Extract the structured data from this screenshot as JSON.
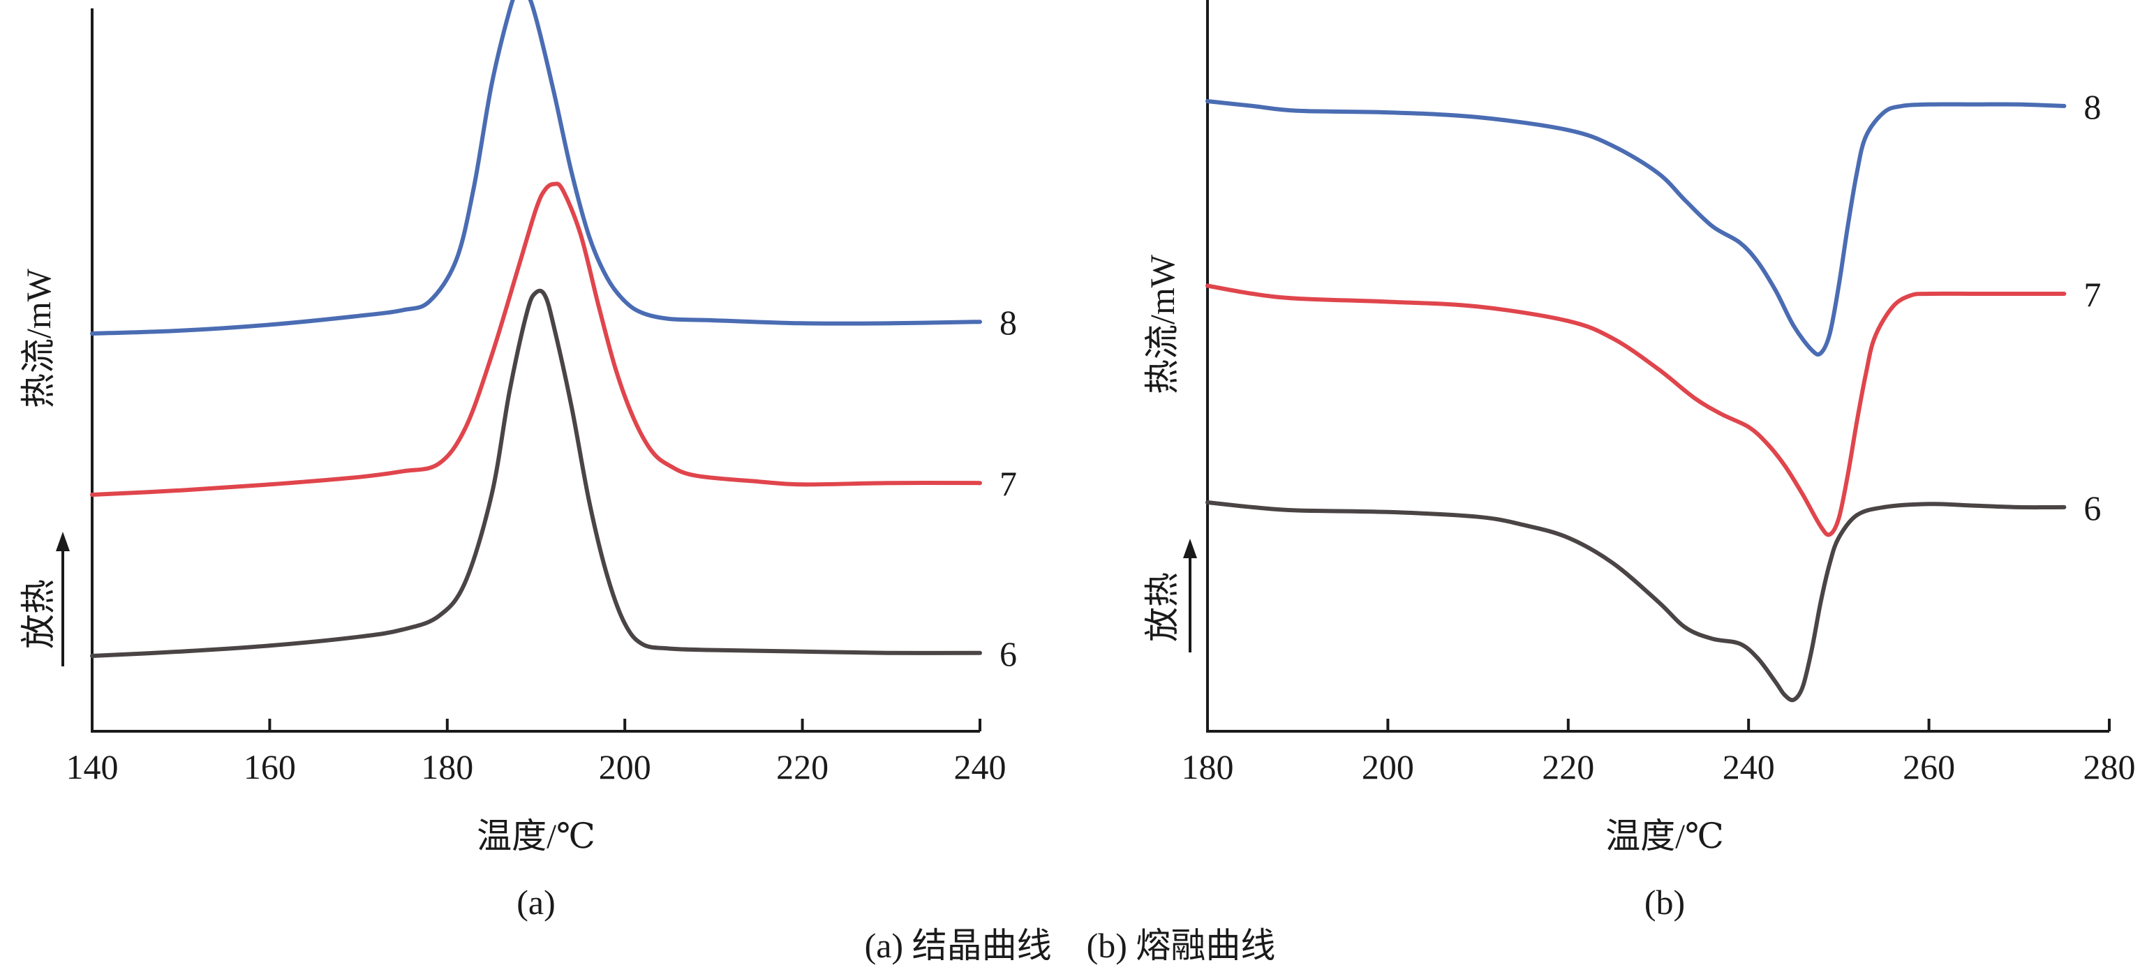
{
  "caption": "(a) 结晶曲线　(b) 熔融曲线",
  "chart_data": [
    {
      "type": "line",
      "panel_label": "(a)",
      "xlabel": "温度/℃",
      "ylabel": "热流/mW",
      "direction_label": "放热",
      "xlim": [
        140,
        240
      ],
      "xticks": [
        140,
        160,
        180,
        200,
        220,
        240
      ],
      "colors": [
        "#4a6cb3",
        "#e0454c",
        "#4a4445"
      ],
      "series": [
        {
          "name": "8",
          "color": "#4a6cb3",
          "offset": 2.2,
          "points": [
            [
              140,
              0.0
            ],
            [
              150,
              0.02
            ],
            [
              160,
              0.06
            ],
            [
              170,
              0.12
            ],
            [
              175,
              0.16
            ],
            [
              178,
              0.22
            ],
            [
              181,
              0.5
            ],
            [
              183,
              1.0
            ],
            [
              185,
              1.7
            ],
            [
              187,
              2.2
            ],
            [
              188,
              2.35
            ],
            [
              189,
              2.32
            ],
            [
              190,
              2.15
            ],
            [
              192,
              1.65
            ],
            [
              194,
              1.1
            ],
            [
              196,
              0.66
            ],
            [
              198,
              0.38
            ],
            [
              200,
              0.22
            ],
            [
              202,
              0.14
            ],
            [
              205,
              0.1
            ],
            [
              210,
              0.09
            ],
            [
              220,
              0.07
            ],
            [
              230,
              0.07
            ],
            [
              240,
              0.08
            ]
          ]
        },
        {
          "name": "7",
          "color": "#e0454c",
          "offset": 1.1,
          "points": [
            [
              140,
              0.0
            ],
            [
              150,
              0.03
            ],
            [
              160,
              0.07
            ],
            [
              170,
              0.12
            ],
            [
              175,
              0.16
            ],
            [
              179,
              0.21
            ],
            [
              182,
              0.45
            ],
            [
              185,
              0.95
            ],
            [
              188,
              1.55
            ],
            [
              190,
              1.95
            ],
            [
              191,
              2.08
            ],
            [
              192,
              2.12
            ],
            [
              193,
              2.08
            ],
            [
              195,
              1.78
            ],
            [
              197,
              1.3
            ],
            [
              199,
              0.85
            ],
            [
              201,
              0.52
            ],
            [
              203,
              0.3
            ],
            [
              205,
              0.2
            ],
            [
              208,
              0.13
            ],
            [
              215,
              0.09
            ],
            [
              220,
              0.07
            ],
            [
              230,
              0.08
            ],
            [
              240,
              0.08
            ]
          ]
        },
        {
          "name": "6",
          "color": "#4a4445",
          "offset": 0.0,
          "points": [
            [
              140,
              0.0
            ],
            [
              150,
              0.03
            ],
            [
              160,
              0.07
            ],
            [
              170,
              0.13
            ],
            [
              175,
              0.18
            ],
            [
              179,
              0.27
            ],
            [
              182,
              0.5
            ],
            [
              185,
              1.1
            ],
            [
              187,
              1.8
            ],
            [
              189,
              2.35
            ],
            [
              190,
              2.48
            ],
            [
              191,
              2.46
            ],
            [
              192,
              2.25
            ],
            [
              194,
              1.7
            ],
            [
              196,
              1.05
            ],
            [
              198,
              0.55
            ],
            [
              200,
              0.22
            ],
            [
              202,
              0.08
            ],
            [
              205,
              0.05
            ],
            [
              210,
              0.04
            ],
            [
              220,
              0.03
            ],
            [
              230,
              0.02
            ],
            [
              240,
              0.02
            ]
          ]
        }
      ]
    },
    {
      "type": "line",
      "panel_label": "(b)",
      "xlabel": "温度/℃",
      "ylabel": "热流/mW",
      "direction_label": "放热",
      "xlim": [
        180,
        280
      ],
      "xticks": [
        180,
        200,
        220,
        240,
        260,
        280
      ],
      "colors": [
        "#4a6cb3",
        "#e0454c",
        "#4a4445"
      ],
      "series": [
        {
          "name": "8",
          "color": "#4a6cb3",
          "offset": 2.5,
          "points": [
            [
              180,
              0.0
            ],
            [
              185,
              -0.03
            ],
            [
              190,
              -0.06
            ],
            [
              200,
              -0.07
            ],
            [
              210,
              -0.1
            ],
            [
              220,
              -0.18
            ],
            [
              225,
              -0.28
            ],
            [
              230,
              -0.45
            ],
            [
              233,
              -0.62
            ],
            [
              236,
              -0.78
            ],
            [
              239,
              -0.88
            ],
            [
              241,
              -1.0
            ],
            [
              243,
              -1.18
            ],
            [
              245,
              -1.4
            ],
            [
              247,
              -1.55
            ],
            [
              248,
              -1.57
            ],
            [
              249,
              -1.45
            ],
            [
              250,
              -1.15
            ],
            [
              251,
              -0.78
            ],
            [
              252,
              -0.45
            ],
            [
              253,
              -0.22
            ],
            [
              255,
              -0.07
            ],
            [
              257,
              -0.03
            ],
            [
              260,
              -0.02
            ],
            [
              265,
              -0.02
            ],
            [
              270,
              -0.02
            ],
            [
              275,
              -0.03
            ]
          ]
        },
        {
          "name": "7",
          "color": "#e0454c",
          "offset": 1.35,
          "points": [
            [
              180,
              0.0
            ],
            [
              185,
              -0.05
            ],
            [
              190,
              -0.08
            ],
            [
              200,
              -0.1
            ],
            [
              210,
              -0.13
            ],
            [
              220,
              -0.22
            ],
            [
              225,
              -0.33
            ],
            [
              230,
              -0.52
            ],
            [
              234,
              -0.7
            ],
            [
              237,
              -0.8
            ],
            [
              240,
              -0.88
            ],
            [
              242,
              -0.98
            ],
            [
              244,
              -1.12
            ],
            [
              246,
              -1.3
            ],
            [
              248,
              -1.5
            ],
            [
              249,
              -1.55
            ],
            [
              250,
              -1.45
            ],
            [
              251,
              -1.18
            ],
            [
              252,
              -0.85
            ],
            [
              253,
              -0.55
            ],
            [
              254,
              -0.32
            ],
            [
              256,
              -0.13
            ],
            [
              258,
              -0.06
            ],
            [
              260,
              -0.05
            ],
            [
              265,
              -0.05
            ],
            [
              270,
              -0.05
            ],
            [
              275,
              -0.05
            ]
          ]
        },
        {
          "name": "6",
          "color": "#4a4445",
          "offset": 0.0,
          "points": [
            [
              180,
              0.0
            ],
            [
              185,
              -0.03
            ],
            [
              190,
              -0.05
            ],
            [
              200,
              -0.06
            ],
            [
              210,
              -0.09
            ],
            [
              215,
              -0.14
            ],
            [
              220,
              -0.22
            ],
            [
              225,
              -0.38
            ],
            [
              230,
              -0.62
            ],
            [
              233,
              -0.78
            ],
            [
              236,
              -0.85
            ],
            [
              239,
              -0.88
            ],
            [
              241,
              -0.97
            ],
            [
              243,
              -1.12
            ],
            [
              244,
              -1.2
            ],
            [
              245,
              -1.23
            ],
            [
              246,
              -1.15
            ],
            [
              247,
              -0.92
            ],
            [
              248,
              -0.62
            ],
            [
              249,
              -0.38
            ],
            [
              250,
              -0.22
            ],
            [
              252,
              -0.08
            ],
            [
              255,
              -0.03
            ],
            [
              260,
              -0.01
            ],
            [
              265,
              -0.02
            ],
            [
              270,
              -0.03
            ],
            [
              275,
              -0.03
            ]
          ]
        }
      ]
    }
  ]
}
